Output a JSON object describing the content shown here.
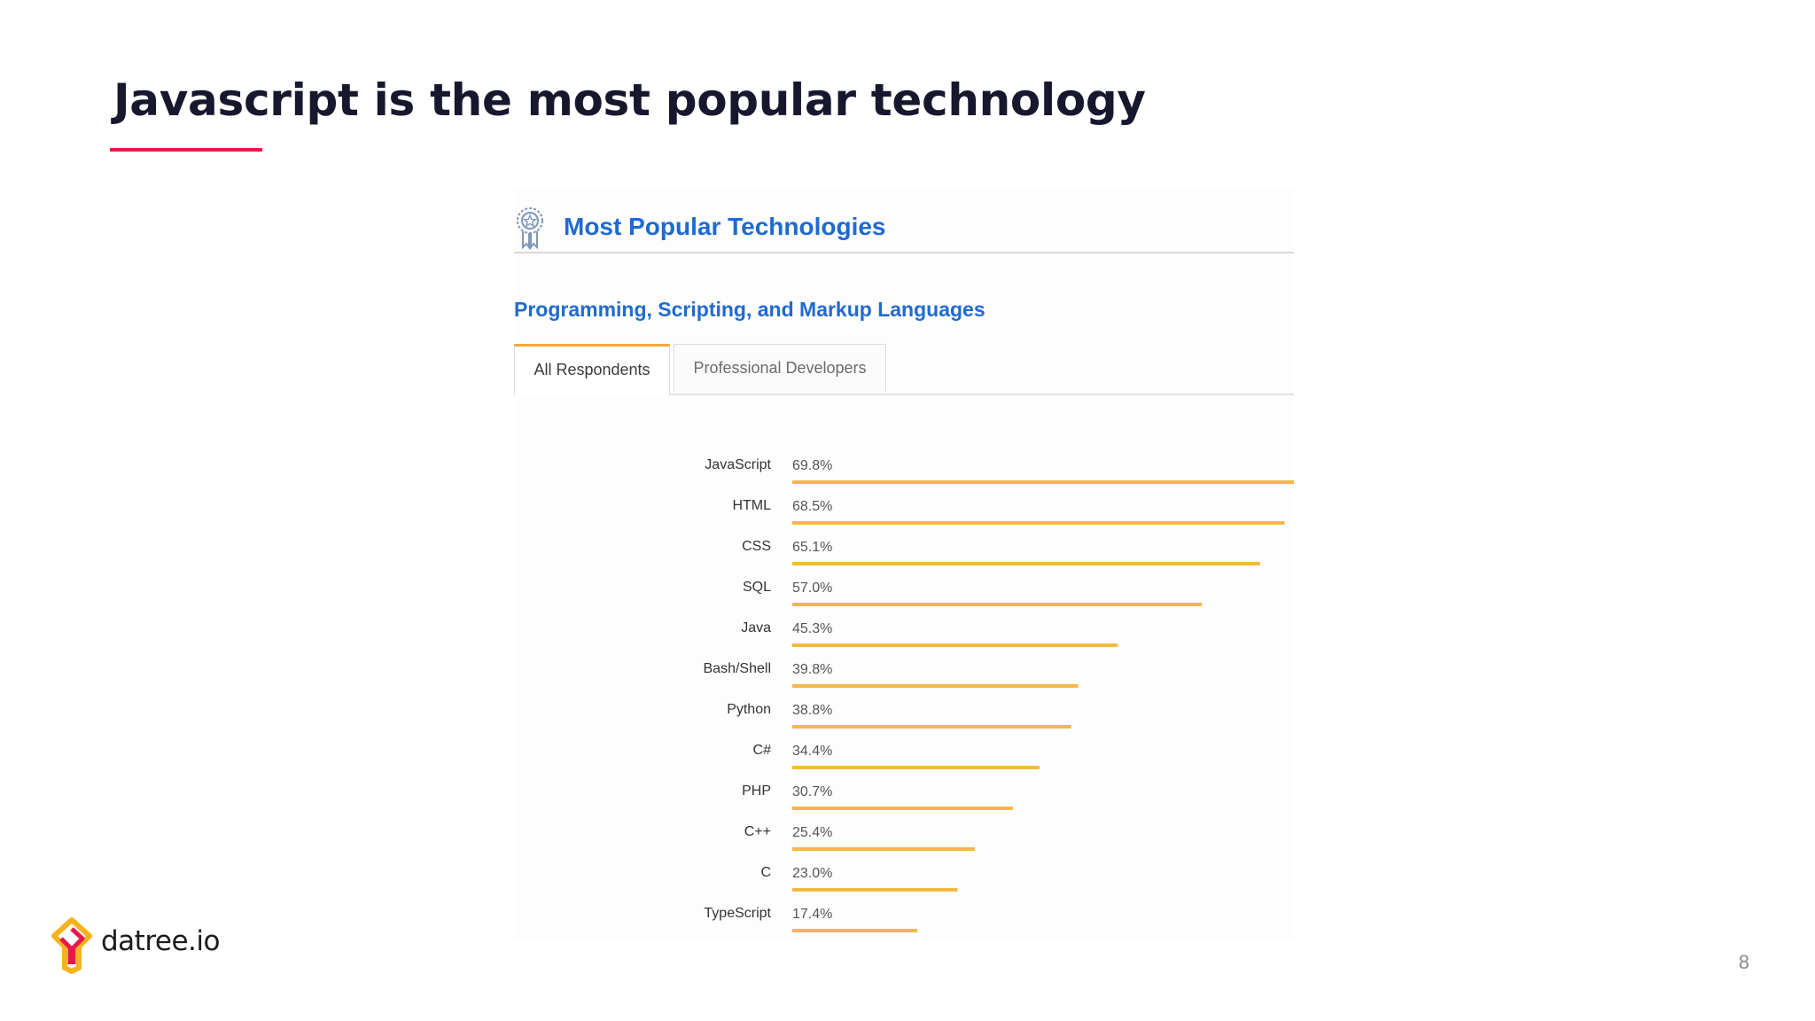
{
  "slide": {
    "title": "Javascript is the most popular technology",
    "page_number": "8",
    "accent_color": "#e8194a"
  },
  "panel": {
    "title": "Most Popular Technologies",
    "icon": "award-ribbon-icon",
    "section_title": "Programming, Scripting, and Markup Languages",
    "title_color": "#1f6ad1",
    "tabs": [
      {
        "label": "All Respondents",
        "selected": true
      },
      {
        "label": "Professional Developers",
        "selected": false
      }
    ]
  },
  "logo": {
    "text": "datree.io",
    "icon": "datree-logo-icon"
  },
  "chart_data": {
    "type": "bar",
    "orientation": "horizontal",
    "categories": [
      "JavaScript",
      "HTML",
      "CSS",
      "SQL",
      "Java",
      "Bash/Shell",
      "Python",
      "C#",
      "PHP",
      "C++",
      "C",
      "TypeScript"
    ],
    "values": [
      69.8,
      68.5,
      65.1,
      57.0,
      45.3,
      39.8,
      38.8,
      34.4,
      30.7,
      25.4,
      23.0,
      17.4
    ],
    "value_labels": [
      "69.8%",
      "68.5%",
      "65.1%",
      "57.0%",
      "45.3%",
      "39.8%",
      "38.8%",
      "34.4%",
      "30.7%",
      "25.4%",
      "23.0%",
      "17.4%"
    ],
    "unit": "%",
    "xlim": [
      0,
      69.8
    ],
    "bar_color": "#f4b844",
    "grid": false,
    "legend": "none"
  }
}
